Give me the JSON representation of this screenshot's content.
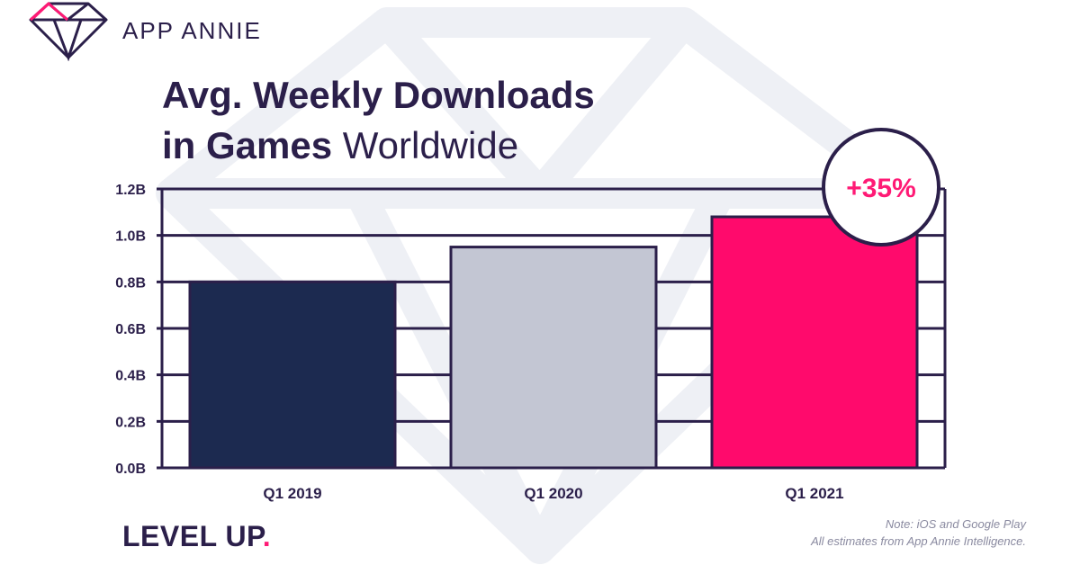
{
  "brand": {
    "name": "APP ANNIE"
  },
  "title": {
    "bold_line1": "Avg. Weekly Downloads",
    "bold_line2": "in Games",
    "light_line2": "Worldwide"
  },
  "tagline": {
    "text": "LEVEL UP",
    "dot": "."
  },
  "note": {
    "line1": "Note: iOS and Google Play",
    "line2": "All estimates from App Annie Intelligence."
  },
  "callout": {
    "text": "+35%"
  },
  "colors": {
    "navy": "#1c2a50",
    "gray": "#c3c6d3",
    "pink": "#ff0a6c",
    "outline": "#2b1f4a",
    "accent": "#ff1a75"
  },
  "chart_data": {
    "type": "bar",
    "title": "Avg. Weekly Downloads in Games Worldwide",
    "categories": [
      "Q1 2019",
      "Q1 2020",
      "Q1 2021"
    ],
    "values": [
      0.8,
      0.95,
      1.08
    ],
    "bar_colors": [
      "#1c2a50",
      "#c3c6d3",
      "#ff0a6c"
    ],
    "yticks": [
      "0.0B",
      "0.2B",
      "0.4B",
      "0.6B",
      "0.8B",
      "1.0B",
      "1.2B"
    ],
    "ylim": [
      0,
      1.2
    ],
    "grid": true,
    "unit": "B"
  }
}
